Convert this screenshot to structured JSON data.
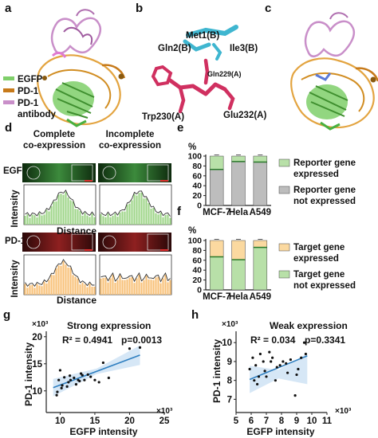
{
  "panels": {
    "a": {
      "letter": "a",
      "legend": [
        {
          "label": "EGFP",
          "color": "#7fcf6a"
        },
        {
          "label": "PD-1",
          "color": "#c77a1a"
        },
        {
          "label": "PD-1\nantibody",
          "label1": "PD-1",
          "label2": "antibody",
          "color": "#c98fc9"
        }
      ]
    },
    "b": {
      "letter": "b",
      "residues": {
        "met1": "Met1(B)",
        "gln2": "Gln2(B)",
        "ile3": "Ile3(B)",
        "gln229": "Gln229(A)",
        "trp230": "Trp230(A)",
        "glu232": "Glu232(A)"
      }
    },
    "c": {
      "letter": "c"
    },
    "d": {
      "letter": "d",
      "col1": [
        "Complete",
        "co-expression"
      ],
      "col2": [
        "Incomplete",
        "co-expression"
      ],
      "row1": "EGFP",
      "row2": "PD-1",
      "ylabel": "Intensity",
      "xlabel": "Distance"
    },
    "e": {
      "letter": "e",
      "unit": "%"
    },
    "f": {
      "letter": "f",
      "unit": "%"
    },
    "g": {
      "letter": "g",
      "title": "Strong expression",
      "ylabel": "PD-1 intensity",
      "xlabel": "EGFP intensity",
      "r2": "R² = 0.4941",
      "p": "p=0.0013",
      "yexp": "×10³",
      "xexp": "×10³"
    },
    "h": {
      "letter": "h",
      "title": "Weak expression",
      "ylabel": "PD-1 intensity",
      "xlabel": "EGFP intensity",
      "r2": "R² = 0.034",
      "p": "p=0.3341",
      "yexp": "×10³",
      "xexp": "×10³"
    }
  },
  "chart_data": [
    {
      "type": "bar",
      "panel": "e",
      "categories": [
        "MCF-7",
        "Hela",
        "A549"
      ],
      "series": [
        {
          "name": "Reporter gene not expressed",
          "values": [
            73,
            89,
            88
          ],
          "color": "#bdbdbd"
        },
        {
          "name": "Reporter gene expressed",
          "values": [
            27,
            11,
            12
          ],
          "color": "#b8e0a8"
        }
      ],
      "ylabel": "%",
      "ylim": [
        0,
        100
      ],
      "yticks": [
        0,
        20,
        40,
        60,
        80,
        100
      ],
      "legend": [
        [
          "Reporter gene",
          "expressed"
        ],
        [
          "Reporter gene",
          "not expressed"
        ]
      ]
    },
    {
      "type": "bar",
      "panel": "f",
      "categories": [
        "MCF-7",
        "Hela",
        "A549"
      ],
      "series": [
        {
          "name": "Target gene not expressed",
          "values": [
            67,
            61,
            86
          ],
          "color": "#b8e0a8"
        },
        {
          "name": "Target gene expressed",
          "values": [
            33,
            39,
            14
          ],
          "color": "#fbd9a0"
        }
      ],
      "ylabel": "%",
      "ylim": [
        0,
        100
      ],
      "yticks": [
        0,
        20,
        40,
        60,
        80,
        100
      ],
      "legend": [
        [
          "Target gene",
          "expressed"
        ],
        [
          "Target gene",
          "not expressed"
        ]
      ]
    },
    {
      "type": "scatter",
      "panel": "g",
      "x": [
        9.5,
        9.8,
        10.0,
        10.3,
        10.6,
        11.0,
        11.2,
        11.5,
        12.0,
        12.3,
        12.6,
        13.0,
        13.5,
        14.0,
        14.4,
        15.0,
        15.6,
        16.2,
        17.0,
        20.0,
        21.5,
        9.6,
        10.2,
        11.4,
        12.8,
        13.2
      ],
      "y": [
        9.2,
        12.0,
        13.8,
        11.0,
        12.5,
        10.8,
        11.6,
        12.0,
        12.4,
        11.2,
        12.0,
        13.2,
        12.0,
        13.0,
        12.6,
        12.0,
        11.6,
        15.2,
        12.4,
        17.8,
        18.0,
        9.8,
        10.5,
        12.8,
        11.8,
        12.9
      ],
      "fit": [
        [
          9,
          10.6
        ],
        [
          21.5,
          16.6
        ]
      ],
      "xlim": [
        8,
        25
      ],
      "ylim": [
        6,
        21
      ],
      "xticks": [
        10,
        15,
        20,
        25
      ],
      "yticks": [
        10,
        15,
        20
      ]
    },
    {
      "type": "scatter",
      "panel": "h",
      "x": [
        5.9,
        6.1,
        6.3,
        6.5,
        6.6,
        6.8,
        7.0,
        7.2,
        7.4,
        7.6,
        7.9,
        8.1,
        8.4,
        8.6,
        8.9,
        9.1,
        9.3,
        9.5,
        6.4,
        6.9,
        7.7,
        8.3,
        9.0,
        9.6,
        6.2,
        7.3
      ],
      "y": [
        8.6,
        9.2,
        8.8,
        8.2,
        9.4,
        9.0,
        8.2,
        9.5,
        9.2,
        8.0,
        8.8,
        9.0,
        8.4,
        9.1,
        7.2,
        8.6,
        9.2,
        10.0,
        7.8,
        8.5,
        8.7,
        8.9,
        8.3,
        9.4,
        8.0,
        9.0
      ],
      "fit": [
        [
          5.9,
          8.05
        ],
        [
          9.7,
          9.3
        ]
      ],
      "xlim": [
        5,
        11
      ],
      "ylim": [
        6.3,
        10.6
      ],
      "xticks": [
        5,
        6,
        7,
        8,
        9,
        10,
        11
      ],
      "yticks": [
        7,
        8,
        9,
        10
      ]
    }
  ]
}
